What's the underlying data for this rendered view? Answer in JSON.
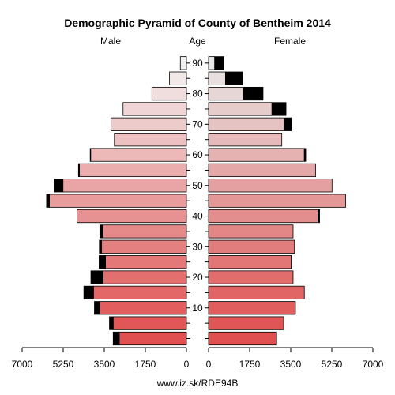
{
  "chart_data": {
    "type": "bar",
    "subtype": "population-pyramid",
    "title": "Demographic Pyramid of County of Bentheim 2014",
    "left_label": "Male",
    "center_label": "Age",
    "right_label": "Female",
    "source": "www.iz.sk/RDE94B",
    "xlim": [
      0,
      7000
    ],
    "x_ticks_left": [
      "7000",
      "5250",
      "3500",
      "1750",
      "0"
    ],
    "x_ticks_right": [
      "0",
      "1750",
      "3500",
      "5250",
      "7000"
    ],
    "age_ticks": [
      "10",
      "20",
      "30",
      "40",
      "50",
      "60",
      "70",
      "80",
      "90"
    ],
    "age_groups": [
      "0-4",
      "5-9",
      "10-14",
      "15-19",
      "20-24",
      "25-29",
      "30-34",
      "35-39",
      "40-44",
      "45-49",
      "50-54",
      "55-59",
      "60-64",
      "65-69",
      "70-74",
      "75-79",
      "80-84",
      "85-89",
      "90+"
    ],
    "series": [
      {
        "name": "Male",
        "values": [
          2860,
          3120,
          3700,
          3960,
          3550,
          3450,
          3620,
          3560,
          4660,
          5840,
          5260,
          4560,
          4080,
          3070,
          3210,
          2700,
          1470,
          720,
          260
        ]
      },
      {
        "name": "Male surplus",
        "values": [
          260,
          160,
          220,
          410,
          520,
          270,
          90,
          130,
          0,
          120,
          380,
          40,
          20,
          0,
          0,
          0,
          0,
          0,
          0
        ]
      },
      {
        "name": "Female",
        "values": [
          2900,
          3200,
          3700,
          4080,
          3600,
          3520,
          3660,
          3600,
          4660,
          5840,
          5260,
          4560,
          4080,
          3120,
          3210,
          2700,
          1470,
          720,
          260
        ]
      },
      {
        "name": "Female surplus",
        "values": [
          0,
          0,
          0,
          0,
          0,
          0,
          0,
          0,
          70,
          0,
          0,
          0,
          60,
          0,
          320,
          600,
          850,
          720,
          390
        ]
      }
    ],
    "grid": false,
    "legend": "none"
  },
  "colors": {
    "surplus": "#000000",
    "young_female": "#e05050",
    "old_female": "#e8e8e8",
    "young_male": "#e05050",
    "old_male": "#f2f2f2"
  }
}
